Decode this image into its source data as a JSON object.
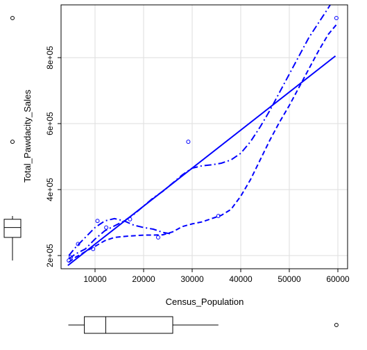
{
  "chart_data": {
    "type": "scatter",
    "xlabel": "Census_Population",
    "ylabel": "Total_Pawdacity_Sales",
    "xlim": [
      3000,
      62000
    ],
    "ylim": [
      160000,
      960000
    ],
    "x_ticks": [
      10000,
      20000,
      30000,
      40000,
      50000,
      60000
    ],
    "x_tick_labels": [
      "10000",
      "20000",
      "30000",
      "40000",
      "50000",
      "60000"
    ],
    "y_ticks": [
      200000,
      400000,
      600000,
      800000
    ],
    "y_tick_labels": [
      "2e+05",
      "4e+05",
      "6e+05",
      "8e+05"
    ],
    "grid": true,
    "point_color": "#0000ff",
    "points": [
      {
        "x": 4600,
        "y": 185000
      },
      {
        "x": 5000,
        "y": 195000
      },
      {
        "x": 6500,
        "y": 235000
      },
      {
        "x": 9600,
        "y": 220000
      },
      {
        "x": 10500,
        "y": 305000
      },
      {
        "x": 12300,
        "y": 285000
      },
      {
        "x": 17200,
        "y": 310000
      },
      {
        "x": 23000,
        "y": 255000
      },
      {
        "x": 29200,
        "y": 545000
      },
      {
        "x": 35400,
        "y": 320000
      },
      {
        "x": 59700,
        "y": 920000
      }
    ],
    "regression_line": {
      "x": [
        4400,
        59500
      ],
      "y": [
        170000,
        805000
      ]
    },
    "smooth_center": {
      "x": [
        4600,
        6000,
        8000,
        10000,
        12000,
        14000,
        16000,
        18000,
        20000,
        22000,
        24000,
        26000,
        28000,
        30000,
        32000,
        34000,
        36000,
        38000,
        40000,
        42000,
        44000,
        46000,
        48000,
        50000,
        52000,
        54000,
        56000,
        58000,
        59700
      ],
      "y": [
        190000,
        205000,
        220000,
        250000,
        275000,
        290000,
        305000,
        325000,
        350000,
        375000,
        395000,
        420000,
        445000,
        465000,
        472000,
        475000,
        480000,
        490000,
        510000,
        545000,
        590000,
        640000,
        695000,
        750000,
        805000,
        860000,
        905000,
        950000,
        990000
      ]
    },
    "smooth_lower": {
      "x": [
        4600,
        6000,
        8000,
        10000,
        12000,
        14000,
        16000,
        18000,
        20000,
        22000,
        24000,
        26000,
        28000,
        30000,
        32000,
        34000,
        36000,
        38000,
        40000,
        42000,
        44000,
        46000,
        48000,
        50000,
        52000,
        54000,
        56000,
        58000,
        59700
      ],
      "y": [
        180000,
        195000,
        212000,
        228000,
        245000,
        255000,
        258000,
        260000,
        262000,
        262000,
        263000,
        272000,
        288000,
        296000,
        302000,
        312000,
        322000,
        340000,
        380000,
        430000,
        490000,
        550000,
        605000,
        655000,
        710000,
        765000,
        820000,
        870000,
        900000
      ]
    },
    "smooth_upper": {
      "x": [
        4600,
        6000,
        8000,
        10000,
        12000,
        14000,
        16000,
        18000,
        20000,
        22000,
        24000,
        26000
      ],
      "y": [
        200000,
        225000,
        255000,
        285000,
        305000,
        312000,
        305000,
        292000,
        285000,
        280000,
        270000,
        265000
      ]
    },
    "x_boxplot": {
      "min": 4500,
      "q1": 7800,
      "median": 12200,
      "q3": 26000,
      "max": 35400,
      "outliers": [
        59700
      ]
    },
    "y_boxplot": {
      "min": 185000,
      "q1": 255000,
      "median": 285000,
      "q3": 310000,
      "max": 320000,
      "outliers": [
        545000,
        920000
      ]
    }
  }
}
